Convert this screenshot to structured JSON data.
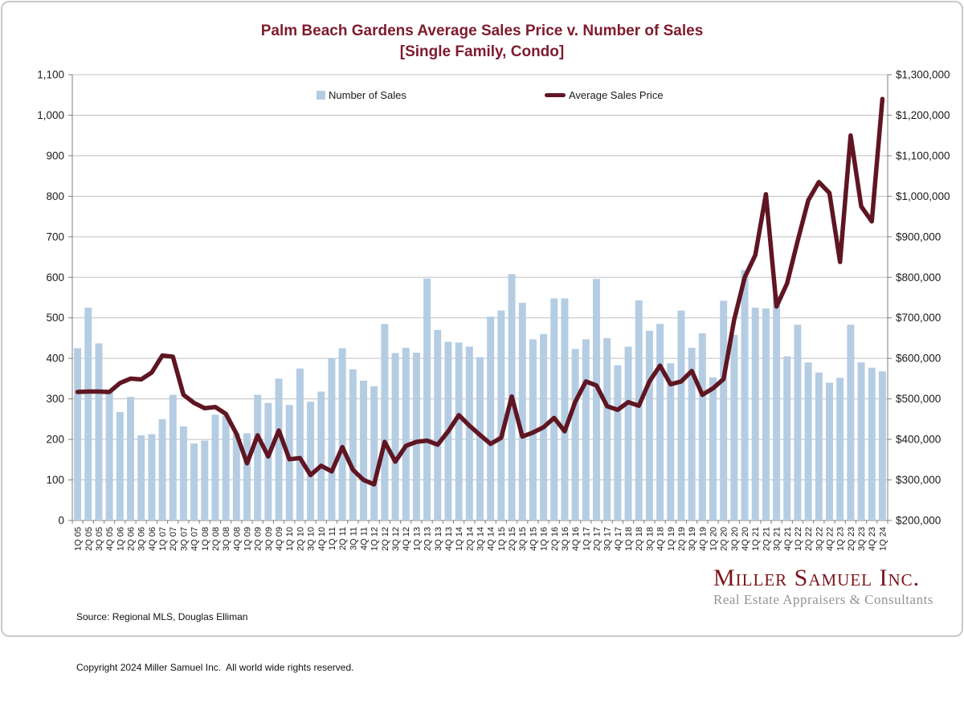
{
  "header": {
    "title_line1": "Palm Beach Gardens Average Sales Price v. Number of Sales",
    "title_line2": "[Single Family, Condo]"
  },
  "legend": {
    "items": [
      {
        "label": "Number of Sales",
        "swatch": "square",
        "color": "#b5cde3"
      },
      {
        "label": "Average Sales Price",
        "swatch": "line",
        "color": "#5f1622"
      }
    ]
  },
  "footer": {
    "source_line": "Source: Regional MLS, Douglas Elliman",
    "copyright_line": "Copyright 2024 Miller Samuel Inc.  All world wide rights reserved."
  },
  "logo": {
    "name": "Miller Samuel Inc.",
    "tagline": "Real Estate Appraisers & Consultants"
  },
  "chart_data": {
    "type": "combo",
    "title": "Palm Beach Gardens Average Sales Price v. Number of Sales",
    "subtitle": "[Single Family, Condo]",
    "grid": true,
    "legend_position": "top-inside",
    "categories": [
      "1Q 05",
      "2Q 05",
      "3Q 05",
      "4Q 05",
      "1Q 06",
      "2Q 06",
      "3Q 06",
      "4Q 06",
      "1Q 07",
      "2Q 07",
      "3Q 07",
      "4Q 07",
      "1Q 08",
      "2Q 08",
      "3Q 08",
      "4Q 08",
      "1Q 09",
      "2Q 09",
      "3Q 09",
      "4Q 09",
      "1Q 10",
      "2Q 10",
      "3Q 10",
      "4Q 10",
      "1Q 11",
      "2Q 11",
      "3Q 11",
      "4Q 11",
      "1Q 12",
      "2Q 12",
      "3Q 12",
      "4Q 12",
      "1Q 13",
      "2Q 13",
      "3Q 13",
      "4Q 13",
      "1Q 14",
      "2Q 14",
      "3Q 14",
      "4Q 14",
      "1Q 15",
      "2Q 15",
      "3Q 15",
      "4Q 15",
      "1Q 16",
      "2Q 16",
      "3Q 16",
      "4Q 16",
      "1Q 17",
      "2Q 17",
      "3Q 17",
      "4Q 17",
      "1Q 18",
      "2Q 18",
      "3Q 18",
      "4Q 18",
      "1Q 19",
      "2Q 19",
      "3Q 19",
      "4Q 19",
      "1Q 20",
      "2Q 20",
      "3Q 20",
      "4Q 20",
      "1Q 21",
      "2Q 21",
      "3Q 21",
      "4Q 21",
      "1Q 22",
      "2Q 22",
      "3Q 22",
      "4Q 22",
      "1Q 23",
      "2Q 23",
      "3Q 23",
      "4Q 23",
      "1Q 24"
    ],
    "series": [
      {
        "name": "Number of Sales",
        "type": "bar",
        "axis": "left",
        "color": "#b5cde3",
        "values": [
          425,
          525,
          437,
          320,
          268,
          305,
          210,
          213,
          250,
          310,
          232,
          190,
          197,
          261,
          259,
          215,
          215,
          310,
          290,
          350,
          285,
          375,
          293,
          318,
          400,
          425,
          373,
          345,
          331,
          485,
          413,
          426,
          414,
          597,
          470,
          441,
          439,
          429,
          403,
          503,
          518,
          608,
          537,
          447,
          460,
          548,
          548,
          423,
          447,
          596,
          450,
          383,
          429,
          543,
          468,
          485,
          388,
          518,
          426,
          462,
          353,
          542,
          458,
          618,
          525,
          523,
          555,
          405,
          483,
          390,
          365,
          340,
          352,
          483,
          390,
          377,
          368
        ]
      },
      {
        "name": "Average Sales Price",
        "type": "line",
        "axis": "right",
        "color": "#5f1622",
        "values": [
          517000,
          518000,
          518000,
          517000,
          539000,
          550000,
          548000,
          565000,
          607000,
          604000,
          510000,
          490000,
          477000,
          480000,
          463000,
          414000,
          341000,
          410000,
          358000,
          422000,
          351000,
          354000,
          312000,
          335000,
          321000,
          381000,
          325000,
          300000,
          289000,
          394000,
          345000,
          384000,
          394000,
          397000,
          387000,
          420000,
          460000,
          434000,
          411000,
          389000,
          404000,
          506000,
          407000,
          417000,
          430000,
          453000,
          420000,
          493000,
          543000,
          533000,
          482000,
          473000,
          492000,
          483000,
          543000,
          582000,
          536000,
          543000,
          569000,
          510000,
          526000,
          549000,
          695000,
          800000,
          855000,
          1005000,
          728000,
          785000,
          890000,
          990000,
          1035000,
          1008000,
          838000,
          1150000,
          975000,
          938000,
          1240000
        ]
      }
    ],
    "left_axis": {
      "label": "Number of Sales",
      "min": 0,
      "max": 1100,
      "step": 100,
      "format": "number"
    },
    "right_axis": {
      "label": "Average Sales Price",
      "min": 200000,
      "max": 1300000,
      "step": 100000,
      "format": "currency"
    }
  }
}
